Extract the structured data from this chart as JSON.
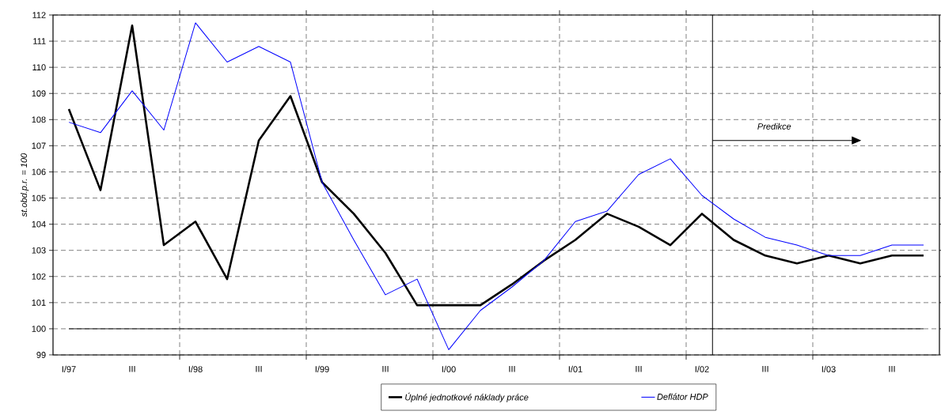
{
  "chart_data": {
    "type": "line",
    "ylabel": "st.obd.p.r. = 100",
    "categories": [
      "I/97",
      null,
      "III",
      null,
      "I/98",
      null,
      "III",
      null,
      "I/99",
      null,
      "III",
      null,
      "I/00",
      null,
      "III",
      null,
      "I/01",
      null,
      "III",
      null,
      "I/02",
      null,
      "III",
      null,
      "I/03",
      null,
      "III",
      null
    ],
    "series": [
      {
        "name": "Úplné jednotkové náklady práce",
        "color": "#000000",
        "values": [
          108.4,
          105.3,
          111.6,
          103.2,
          104.1,
          101.9,
          107.2,
          108.9,
          105.6,
          104.4,
          102.9,
          100.9,
          100.9,
          100.9,
          101.7,
          102.6,
          103.4,
          104.4,
          103.9,
          103.2,
          104.4,
          103.4,
          102.8,
          102.5,
          102.8,
          102.5,
          102.8,
          102.8
        ]
      },
      {
        "name": "Deflátor HDP",
        "color": "#0000ff",
        "values": [
          107.9,
          107.5,
          109.1,
          107.6,
          111.7,
          110.2,
          110.8,
          110.2,
          105.6,
          103.4,
          101.3,
          101.9,
          99.2,
          100.7,
          101.6,
          102.6,
          104.1,
          104.5,
          105.9,
          106.5,
          105.1,
          104.2,
          103.5,
          103.2,
          102.8,
          102.8,
          103.2,
          103.2
        ]
      }
    ],
    "ylim": [
      99,
      112
    ],
    "yticks": [
      99,
      100,
      101,
      102,
      103,
      104,
      105,
      106,
      107,
      108,
      109,
      110,
      111,
      112
    ],
    "ref_lines": [
      {
        "axis": "y",
        "value": 100,
        "label": null,
        "color": "#000000",
        "line_style": "solid"
      }
    ],
    "annotations": [
      "Predikce"
    ],
    "grid": true,
    "legend": "bottom",
    "marker": "none",
    "line_style": "solid"
  }
}
